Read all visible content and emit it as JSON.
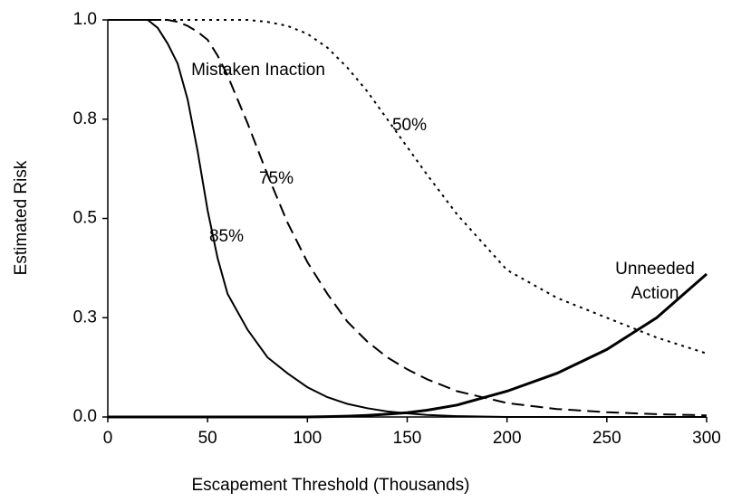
{
  "chart_data": {
    "type": "line",
    "x_label": "Escapement Threshold (Thousands)",
    "y_label": "Estimated Risk",
    "x": [
      0,
      10,
      20,
      25,
      30,
      35,
      40,
      45,
      50,
      55,
      60,
      70,
      80,
      90,
      100,
      110,
      120,
      130,
      140,
      150,
      160,
      175,
      200,
      225,
      250,
      275,
      300
    ],
    "series": [
      {
        "color": "#000000",
        "dash": "solid",
        "width": 2,
        "values": [
          1,
          1,
          1,
          0.98,
          0.94,
          0.89,
          0.8,
          0.67,
          0.52,
          0.4,
          0.31,
          0.22,
          0.15,
          0.11,
          0.075,
          0.05,
          0.033,
          0.022,
          0.014,
          0.009,
          0.005,
          0.002,
          0,
          0,
          0,
          0,
          0
        ]
      },
      {
        "color": "#000000",
        "dash": "dashed",
        "width": 2,
        "values": [
          1,
          1,
          1,
          1,
          1,
          0.995,
          0.985,
          0.97,
          0.95,
          0.91,
          0.86,
          0.74,
          0.61,
          0.49,
          0.39,
          0.31,
          0.24,
          0.19,
          0.15,
          0.12,
          0.095,
          0.065,
          0.035,
          0.02,
          0.012,
          0.007,
          0.004
        ]
      },
      {
        "color": "#000000",
        "dash": "dotted",
        "width": 2,
        "values": [
          1,
          1,
          1,
          1,
          1,
          1,
          1,
          1,
          1,
          1,
          1,
          1,
          0.995,
          0.985,
          0.965,
          0.93,
          0.88,
          0.82,
          0.75,
          0.68,
          0.61,
          0.51,
          0.37,
          0.3,
          0.25,
          0.2,
          0.16
        ]
      },
      {
        "color": "#000000",
        "dash": "solid",
        "width": 3,
        "values": [
          0,
          0,
          0,
          0,
          0,
          0,
          0,
          0,
          0,
          0,
          0,
          0,
          0,
          0,
          0,
          0.001,
          0.002,
          0.004,
          0.007,
          0.011,
          0.017,
          0.03,
          0.065,
          0.11,
          0.17,
          0.25,
          0.36
        ]
      }
    ],
    "annotations": [
      "Mistaken Inaction",
      "50%",
      "75%",
      "85%",
      "Unneeded",
      "Action"
    ],
    "xlim": [
      0,
      300
    ],
    "xticks": [
      0,
      50,
      100,
      150,
      200,
      250,
      300
    ],
    "ylim": [
      0,
      1
    ],
    "yticks": [
      {
        "value": 0,
        "label": "0.0"
      },
      {
        "value": 0.25,
        "label": "0.3"
      },
      {
        "value": 0.5,
        "label": "0.5"
      },
      {
        "value": 0.75,
        "label": "0.8"
      },
      {
        "value": 1,
        "label": "1.0"
      }
    ]
  }
}
